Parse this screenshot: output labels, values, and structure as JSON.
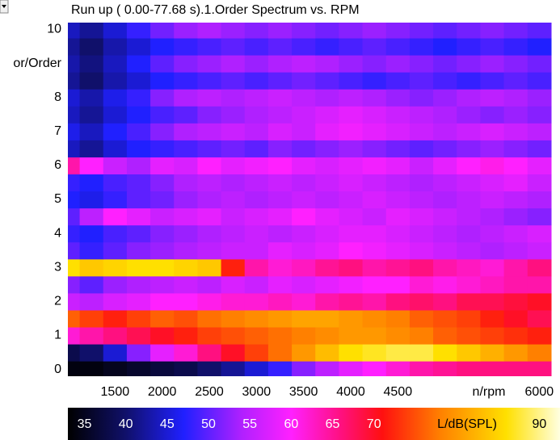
{
  "chart_data": {
    "type": "heatmap",
    "title": "Run up ( 0.00-77.68 s).1.Order Spectrum vs. RPM",
    "xlabel": "n/rpm",
    "ylabel": "or/Order",
    "clabel": "L/dB(SPL)",
    "x": [
      1000,
      1250,
      1500,
      1750,
      2000,
      2250,
      2500,
      2750,
      3000,
      3250,
      3500,
      3750,
      4000,
      4250,
      4500,
      4750,
      5000,
      5250,
      5500,
      5750,
      6000
    ],
    "y": [
      0,
      0.5,
      1,
      1.5,
      2,
      2.5,
      3,
      3.5,
      4,
      4.5,
      5,
      5.5,
      6,
      6.5,
      7,
      7.5,
      8,
      8.5,
      9,
      9.5,
      10
    ],
    "z": [
      [
        34,
        34,
        35,
        36,
        37,
        38,
        40,
        42,
        45,
        48,
        52,
        55,
        58,
        60,
        62,
        64,
        65,
        66,
        66,
        66,
        66
      ],
      [
        38,
        40,
        45,
        52,
        58,
        62,
        66,
        70,
        74,
        77,
        80,
        83,
        86,
        87,
        88,
        88,
        86,
        84,
        82,
        80,
        78
      ],
      [
        62,
        64,
        66,
        68,
        70,
        72,
        74,
        75,
        76,
        77,
        78,
        79,
        80,
        80,
        79,
        78,
        76,
        75,
        74,
        73,
        72
      ],
      [
        76,
        74,
        72,
        74,
        76,
        75,
        77,
        78,
        79,
        80,
        81,
        81,
        80,
        79,
        78,
        76,
        75,
        74,
        72,
        70,
        68
      ],
      [
        56,
        55,
        57,
        58,
        60,
        60,
        61,
        62,
        62,
        63,
        62,
        64,
        65,
        64,
        66,
        67,
        66,
        68,
        68,
        69,
        70
      ],
      [
        52,
        50,
        53,
        54,
        55,
        56,
        55,
        57,
        56,
        58,
        57,
        58,
        59,
        60,
        60,
        62,
        61,
        62,
        63,
        64,
        64
      ],
      [
        86,
        84,
        85,
        86,
        86,
        85,
        84,
        72,
        64,
        62,
        63,
        65,
        66,
        64,
        65,
        66,
        64,
        63,
        62,
        64,
        66
      ],
      [
        50,
        48,
        50,
        52,
        53,
        54,
        55,
        56,
        56,
        58,
        57,
        58,
        60,
        59,
        58,
        57,
        56,
        55,
        54,
        55,
        56
      ],
      [
        48,
        47,
        49,
        50,
        52,
        53,
        54,
        55,
        56,
        55,
        56,
        57,
        58,
        58,
        57,
        56,
        55,
        54,
        55,
        56,
        57
      ],
      [
        50,
        55,
        60,
        58,
        56,
        57,
        58,
        56,
        57,
        58,
        60,
        58,
        57,
        56,
        58,
        57,
        56,
        55,
        54,
        53,
        52
      ],
      [
        47,
        46,
        48,
        50,
        51,
        53,
        54,
        55,
        54,
        55,
        56,
        55,
        56,
        57,
        56,
        55,
        54,
        55,
        56,
        55,
        54
      ],
      [
        48,
        47,
        49,
        50,
        52,
        54,
        55,
        54,
        55,
        56,
        55,
        56,
        57,
        56,
        55,
        54,
        55,
        56,
        57,
        58,
        56
      ],
      [
        64,
        60,
        56,
        54,
        58,
        57,
        60,
        58,
        59,
        60,
        58,
        57,
        58,
        59,
        58,
        56,
        58,
        60,
        61,
        60,
        58
      ],
      [
        44,
        42,
        45,
        47,
        48,
        49,
        50,
        51,
        50,
        52,
        51,
        52,
        53,
        52,
        51,
        50,
        51,
        52,
        53,
        52,
        51
      ],
      [
        46,
        44,
        47,
        49,
        52,
        54,
        55,
        56,
        55,
        57,
        56,
        58,
        59,
        58,
        57,
        56,
        55,
        56,
        57,
        56,
        55
      ],
      [
        44,
        42,
        45,
        47,
        49,
        50,
        52,
        53,
        54,
        55,
        56,
        57,
        58,
        57,
        56,
        55,
        54,
        53,
        52,
        53,
        52
      ],
      [
        45,
        43,
        46,
        48,
        52,
        54,
        55,
        54,
        55,
        56,
        55,
        54,
        55,
        54,
        53,
        52,
        53,
        54,
        55,
        54,
        53
      ],
      [
        42,
        40,
        43,
        45,
        47,
        48,
        49,
        50,
        49,
        50,
        51,
        50,
        49,
        48,
        49,
        50,
        49,
        48,
        49,
        50,
        49
      ],
      [
        43,
        41,
        44,
        47,
        50,
        52,
        53,
        54,
        53,
        54,
        55,
        54,
        53,
        52,
        53,
        52,
        51,
        52,
        53,
        52,
        51
      ],
      [
        42,
        40,
        43,
        45,
        47,
        48,
        49,
        50,
        49,
        50,
        49,
        48,
        49,
        50,
        49,
        48,
        47,
        48,
        49,
        48,
        47
      ],
      [
        44,
        42,
        45,
        48,
        51,
        53,
        54,
        53,
        52,
        53,
        52,
        51,
        52,
        53,
        52,
        51,
        50,
        51,
        52,
        51,
        50
      ]
    ],
    "xlim": [
      1000,
      6220
    ],
    "ylim": [
      -0.2,
      10.2
    ],
    "clim": [
      33,
      92.5
    ],
    "xticks": [
      1500,
      2000,
      2500,
      3000,
      3500,
      4000,
      4500,
      6000
    ],
    "yticks": [
      0,
      1,
      2,
      3,
      4,
      5,
      6,
      7,
      8,
      10
    ],
    "cticks": [
      35,
      40,
      45,
      50,
      55,
      60,
      65,
      70,
      90
    ],
    "colorscale": [
      [
        33,
        "#000000"
      ],
      [
        40,
        "#10106a"
      ],
      [
        47,
        "#2020ff"
      ],
      [
        54,
        "#b020ff"
      ],
      [
        60,
        "#ff20ff"
      ],
      [
        66,
        "#ff1080"
      ],
      [
        71,
        "#ff1010"
      ],
      [
        78,
        "#ff8000"
      ],
      [
        86,
        "#ffe000"
      ],
      [
        92.5,
        "#ffffe0"
      ]
    ]
  }
}
